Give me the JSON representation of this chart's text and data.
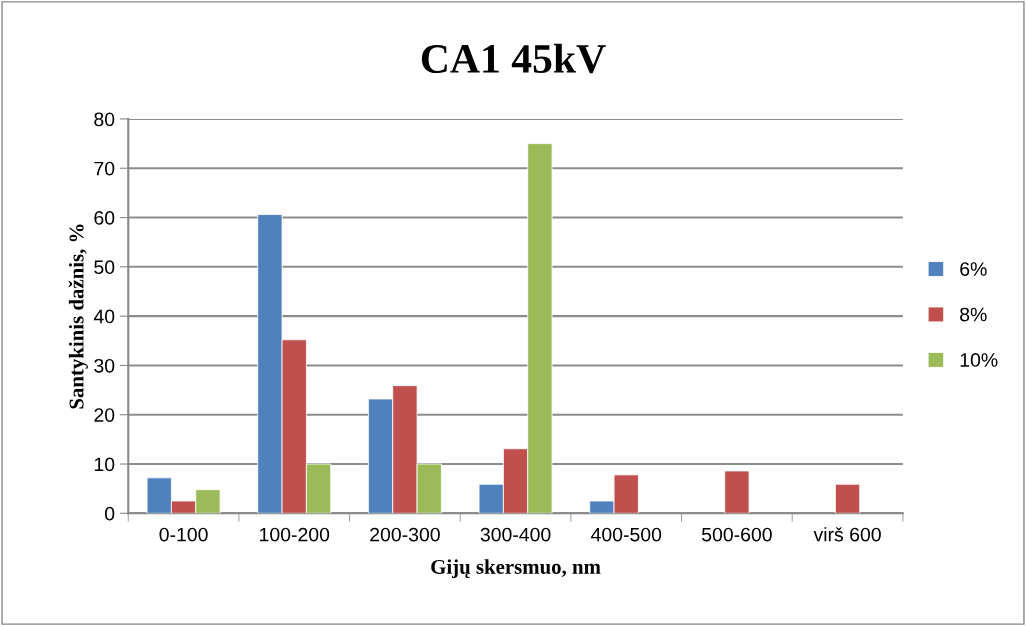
{
  "chart_data": {
    "type": "bar",
    "title": "CA1 45kV",
    "xlabel": "Gijų skersmuo, nm",
    "ylabel": "Santykinis dažnis, %",
    "categories": [
      "0-100",
      "100-200",
      "200-300",
      "300-400",
      "400-500",
      "500-600",
      "virš 600"
    ],
    "series": [
      {
        "name": "6%",
        "color": "#4f81bd",
        "values": [
          7.2,
          60.6,
          23.2,
          5.9,
          2.5,
          null,
          null
        ]
      },
      {
        "name": "8%",
        "color": "#c0504d",
        "values": [
          2.5,
          35.2,
          25.9,
          13.1,
          7.8,
          8.6,
          5.9
        ]
      },
      {
        "name": "10%",
        "color": "#9bbb59",
        "values": [
          4.8,
          10,
          10,
          75,
          null,
          null,
          null
        ]
      }
    ],
    "ylim": [
      0,
      80
    ],
    "yticks": [
      0,
      10,
      20,
      30,
      40,
      50,
      60,
      70,
      80
    ],
    "grid": "y",
    "legend": "right"
  }
}
